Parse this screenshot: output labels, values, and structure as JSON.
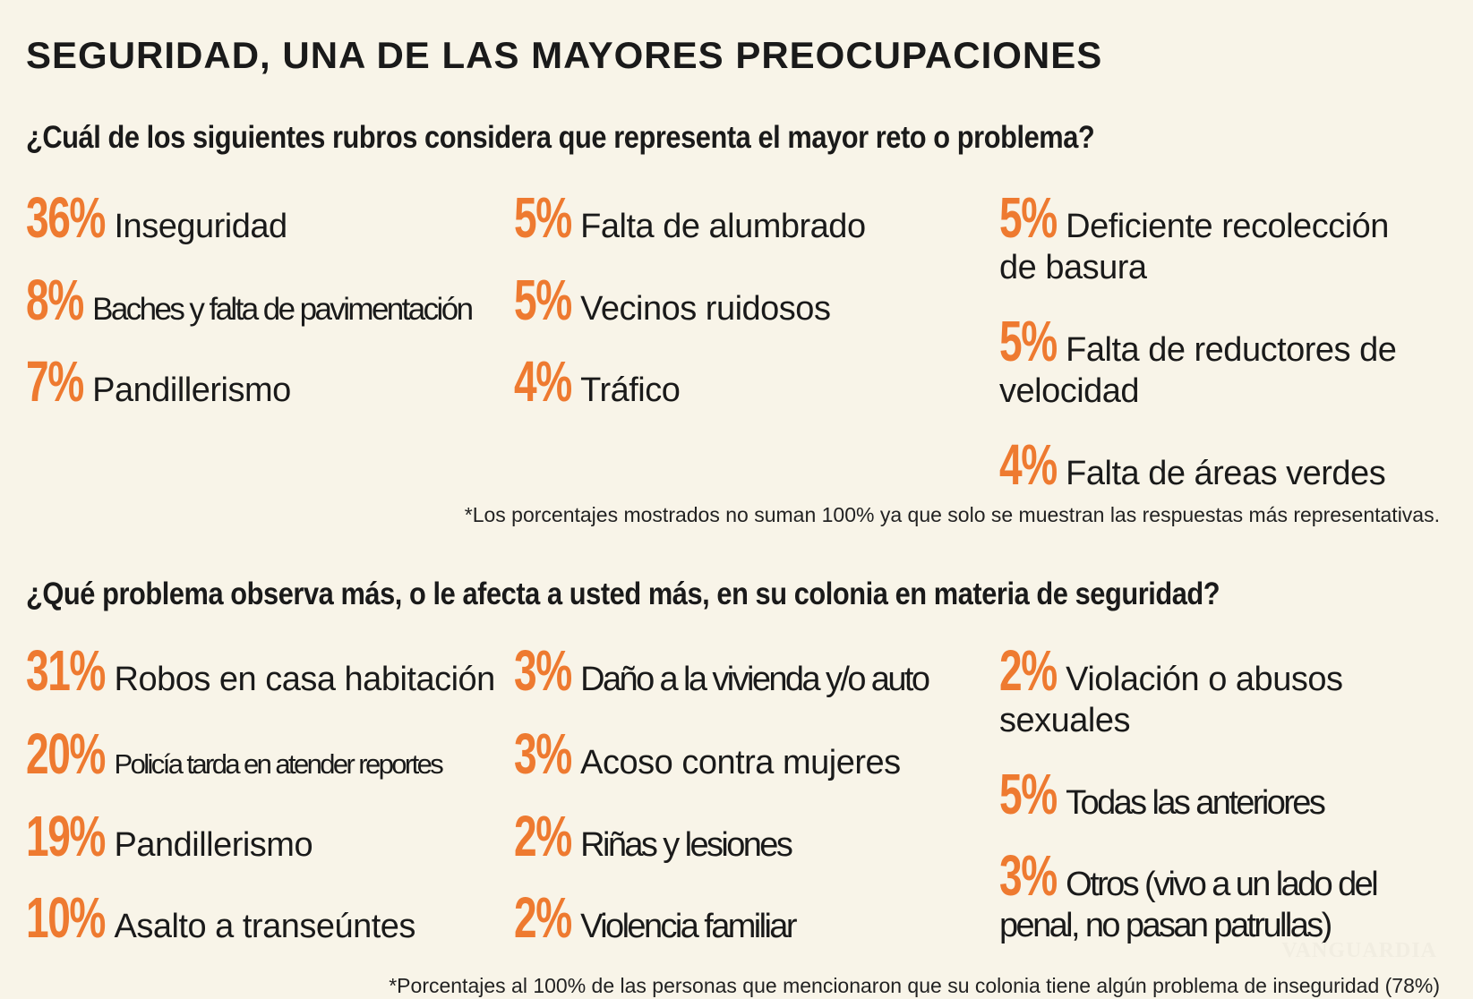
{
  "title": "SEGURIDAD, UNA DE LAS MAYORES PREOCUPACIONES",
  "accent_color": "#ee7a30",
  "background_color": "#f8f4e8",
  "section1": {
    "question": "¿Cuál de los siguientes rubros considera que representa el mayor reto o problema?",
    "items": [
      {
        "pct": "36%",
        "label": "Inseguridad"
      },
      {
        "pct": "8%",
        "label": "Baches y falta de pavimentación"
      },
      {
        "pct": "7%",
        "label": "Pandillerismo"
      },
      {
        "pct": "5%",
        "label": "Falta de alumbrado"
      },
      {
        "pct": "5%",
        "label": "Vecinos ruidosos"
      },
      {
        "pct": "4%",
        "label": "Tráfico"
      },
      {
        "pct": "5%",
        "label": "Deficiente recolección de basura"
      },
      {
        "pct": "5%",
        "label": "Falta de reductores de velocidad"
      },
      {
        "pct": "4%",
        "label": "Falta de áreas verdes"
      }
    ],
    "note": "*Los porcentajes mostrados no suman 100% ya que solo se muestran las respuestas más representativas."
  },
  "section2": {
    "question": "¿Qué problema observa más, o le afecta a usted más, en su colonia en materia de seguridad?",
    "items": [
      {
        "pct": "31%",
        "label": "Robos en casa habitación"
      },
      {
        "pct": "20%",
        "label": "Policía tarda en atender reportes"
      },
      {
        "pct": "19%",
        "label": "Pandillerismo"
      },
      {
        "pct": "10%",
        "label": "Asalto a transeúntes"
      },
      {
        "pct": "3%",
        "label": "Daño a la vivienda y/o auto"
      },
      {
        "pct": "3%",
        "label": "Acoso contra mujeres"
      },
      {
        "pct": "2%",
        "label": "Riñas y lesiones"
      },
      {
        "pct": "2%",
        "label": "Violencia familiar"
      },
      {
        "pct": "2%",
        "label": "Violación o abusos sexuales"
      },
      {
        "pct": "5%",
        "label": "Todas las anteriores"
      },
      {
        "pct": "3%",
        "label": "Otros (vivo a un lado del penal, no pasan patrullas)"
      }
    ],
    "note": "*Porcentajes al 100% de las personas que mencionaron que su colonia tiene algún problema de inseguridad (78%)"
  },
  "watermark": "VANGUARDIA"
}
